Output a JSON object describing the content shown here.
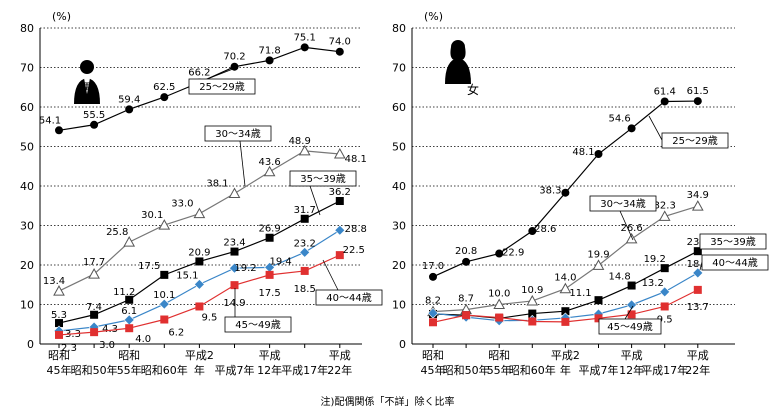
{
  "chart_data": [
    {
      "type": "line",
      "panel": "male",
      "title": "男",
      "yunit": "(%)",
      "ylim": [
        0,
        80
      ],
      "yticks": [
        0,
        10,
        20,
        30,
        40,
        50,
        60,
        70,
        80
      ],
      "categories": [
        "昭和45年",
        "昭和50年",
        "昭和55年",
        "昭和60年",
        "平成2年",
        "平成7年",
        "平成12年",
        "平成17年",
        "平成22年"
      ],
      "xtick_lines": [
        [
          "昭和",
          "45年"
        ],
        [
          "",
          "昭和50年"
        ],
        [
          "昭和",
          "55年"
        ],
        [
          "",
          "昭和60年"
        ],
        [
          "平成2",
          "年"
        ],
        [
          "",
          "平成7年"
        ],
        [
          "平成",
          "12年"
        ],
        [
          "",
          "平成17年"
        ],
        [
          "平成",
          "22年"
        ]
      ],
      "series": [
        {
          "name": "25～29歳",
          "color": "#000000",
          "marker": "circle",
          "values": [
            54.1,
            55.5,
            59.4,
            62.5,
            66.2,
            70.2,
            71.8,
            75.1,
            74.0
          ],
          "labels": [
            "54.1",
            "55.5",
            "59.4",
            "62.5",
            "66.2",
            "70.2",
            "71.8",
            "75.1",
            "74.0"
          ]
        },
        {
          "name": "30～34歳",
          "color": "#777777",
          "marker": "triangle",
          "values": [
            13.4,
            17.7,
            25.8,
            30.1,
            33.0,
            38.1,
            43.6,
            48.9,
            48.1
          ],
          "labels": [
            "13.4",
            "17.7",
            "25.8",
            "30.1",
            "33.0",
            "38.1",
            "43.6",
            "48.9",
            "48.1"
          ]
        },
        {
          "name": "35～39歳",
          "color": "#000000",
          "marker": "square",
          "values": [
            5.3,
            7.4,
            11.2,
            17.5,
            20.9,
            23.4,
            26.9,
            31.7,
            36.2
          ],
          "labels": [
            "5.3",
            "7.4",
            "11.2",
            "17.5",
            "20.9",
            "23.4",
            "26.9",
            "31.7",
            "36.2"
          ]
        },
        {
          "name": "40～44歳",
          "color": "#3a86c8",
          "marker": "diamond",
          "values": [
            3.3,
            4.3,
            6.1,
            10.1,
            15.1,
            19.2,
            19.4,
            23.2,
            28.8
          ],
          "labels": [
            "3.3",
            "4.3",
            "6.1",
            "10.1",
            "15.1",
            "19.2",
            "19.4",
            "23.2",
            "28.8"
          ]
        },
        {
          "name": "45～49歳",
          "color": "#e03030",
          "marker": "square",
          "values": [
            2.3,
            3.0,
            4.0,
            6.2,
            9.5,
            14.9,
            17.5,
            18.5,
            22.5
          ],
          "labels": [
            "2.3",
            "3.0",
            "4.0",
            "6.2",
            "9.5",
            "14.9",
            "17.5",
            "18.5",
            "22.5"
          ]
        }
      ]
    },
    {
      "type": "line",
      "panel": "female",
      "title": "女",
      "yunit": "(%)",
      "ylim": [
        0,
        80
      ],
      "yticks": [
        0,
        10,
        20,
        30,
        40,
        50,
        60,
        70,
        80
      ],
      "categories": [
        "昭和45年",
        "昭和50年",
        "昭和55年",
        "昭和60年",
        "平成2年",
        "平成7年",
        "平成12年",
        "平成17年",
        "平成22年"
      ],
      "xtick_lines": [
        [
          "昭和",
          "45年"
        ],
        [
          "",
          "昭和50年"
        ],
        [
          "昭和",
          "55年"
        ],
        [
          "",
          "昭和60年"
        ],
        [
          "平成2",
          "年"
        ],
        [
          "",
          "平成7年"
        ],
        [
          "平成",
          "12年"
        ],
        [
          "",
          "平成17年"
        ],
        [
          "平成",
          "22年"
        ]
      ],
      "series": [
        {
          "name": "25～29歳",
          "color": "#000000",
          "marker": "circle",
          "values": [
            17.0,
            20.8,
            22.9,
            28.6,
            38.3,
            48.1,
            54.6,
            61.4,
            61.5
          ],
          "labels": [
            "17.0",
            "20.8",
            "22.9",
            "28.6",
            "38.3",
            "48.1",
            "54.6",
            "61.4",
            "61.5"
          ]
        },
        {
          "name": "30～34歳",
          "color": "#777777",
          "marker": "triangle",
          "values": [
            8.2,
            8.7,
            10.0,
            10.9,
            14.0,
            19.9,
            26.6,
            32.3,
            34.9
          ],
          "labels": [
            "8.2",
            "8.7",
            "10.0",
            "10.9",
            "14.0",
            "19.9",
            "26.6",
            "32.3",
            "34.9"
          ]
        },
        {
          "name": "35～39歳",
          "color": "#000000",
          "marker": "square",
          "values": [
            7.6,
            7.3,
            6.5,
            7.7,
            8.3,
            11.1,
            14.8,
            19.2,
            23.5
          ],
          "labels": [
            "",
            "",
            "",
            "",
            "",
            "11.1",
            "14.8",
            "19.2",
            "23.5"
          ]
        },
        {
          "name": "40～44歳",
          "color": "#3a86c8",
          "marker": "diamond",
          "values": [
            7.8,
            6.8,
            5.9,
            6.0,
            6.6,
            7.6,
            9.9,
            13.2,
            18.0
          ],
          "labels": [
            "",
            "",
            "",
            "",
            "",
            "",
            "",
            "13.2",
            "18.0"
          ]
        },
        {
          "name": "45～49歳",
          "color": "#e03030",
          "marker": "square",
          "values": [
            5.5,
            7.3,
            6.7,
            5.7,
            5.6,
            6.5,
            7.5,
            9.5,
            13.7
          ],
          "labels": [
            "",
            "",
            "",
            "",
            "",
            "",
            "",
            "9.5",
            "13.7"
          ]
        }
      ]
    }
  ],
  "note": "注)配偶関係「不詳」除く比率"
}
